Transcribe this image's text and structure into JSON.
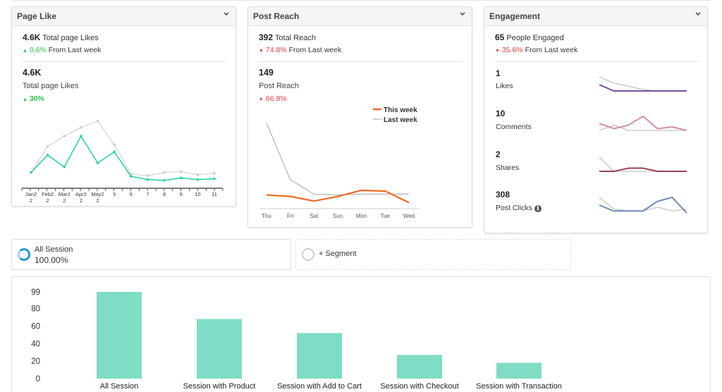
{
  "page_like": {
    "title": "Page Like",
    "summary_value": "4.6K",
    "summary_label": "Total page Likes",
    "delta_arrow": "▲",
    "delta_pct": "0.6%",
    "delta_suffix": "From Last week",
    "big_value": "4.6K",
    "big_label": "Total page Likes",
    "big_delta_arrow": "▲",
    "big_delta": "30%",
    "chart_data": {
      "type": "line",
      "categories": [
        "Jan2 2",
        "Feb2 2",
        "Mar2 2",
        "Apr2 2",
        "May2 2",
        "5",
        "6",
        "7",
        "8",
        "9",
        "10",
        "11"
      ],
      "tick_labels": [
        [
          "Jan2",
          "2"
        ],
        [
          "Feb2",
          "2"
        ],
        [
          "Mar2",
          "2"
        ],
        [
          "Apr2",
          "2"
        ],
        [
          "May2",
          "2"
        ],
        [
          "5"
        ],
        [
          "6"
        ],
        [
          "7"
        ],
        [
          "8"
        ],
        [
          "9"
        ],
        [
          "10"
        ],
        [
          "11"
        ]
      ],
      "series": [
        {
          "values": [
            20,
            42,
            27,
            66,
            32,
            46,
            15,
            11,
            10,
            13,
            11,
            12
          ],
          "color": "#2ed3a0"
        },
        {
          "values": [
            20,
            53,
            66,
            77,
            85,
            55,
            18,
            16,
            20,
            21,
            17,
            19
          ],
          "color": "#cccccc"
        }
      ],
      "ylim": [
        0,
        100
      ]
    }
  },
  "post_reach": {
    "title": "Post Reach",
    "summary_value": "392",
    "summary_label": "Total Reach",
    "delta_arrow": "▼",
    "delta_pct": "74.8%",
    "delta_suffix": "From Last week",
    "big_value": "149",
    "big_label": "Post Reach",
    "big_delta_arrow": "▼",
    "big_delta": "66.9%",
    "chart_data": {
      "type": "line",
      "categories": [
        "Thu",
        "Fri",
        "Sat",
        "Sun",
        "Mon",
        "Tue",
        "Wed"
      ],
      "legend": [
        "This week",
        "Last week"
      ],
      "series": [
        {
          "name": "This week",
          "values": [
            18,
            16,
            10,
            16,
            24,
            23,
            8
          ],
          "color": "#f26722"
        },
        {
          "name": "Last week",
          "values": [
            112,
            38,
            19,
            18,
            19,
            19,
            19
          ],
          "color": "#b5b5b5"
        }
      ],
      "ylim": [
        0,
        130
      ]
    }
  },
  "engagement": {
    "title": "Engagement",
    "summary_value": "65",
    "summary_label": "People Engaged",
    "delta_arrow": "▼",
    "delta_pct": "35.6%",
    "delta_suffix": "From Last week",
    "metrics": [
      {
        "value": "1",
        "label": "Likes",
        "info": "",
        "color": "#7b4f9c",
        "current": [
          5,
          1,
          1,
          1,
          1,
          1,
          1
        ],
        "previous": [
          10,
          6,
          4,
          2,
          1,
          1,
          1
        ]
      },
      {
        "value": "10",
        "label": "Comments",
        "info": "",
        "color": "#d48fa0",
        "current": [
          6,
          3,
          5,
          10,
          3,
          4,
          2
        ],
        "previous": [
          2,
          5,
          2,
          2,
          2,
          2,
          2
        ]
      },
      {
        "value": "2",
        "label": "Shares",
        "info": "",
        "color": "#9e3f58",
        "current": [
          1,
          1,
          3,
          3,
          1,
          1,
          1
        ],
        "previous": [
          10,
          1,
          1,
          1,
          1,
          1,
          1
        ]
      },
      {
        "value": "308",
        "label": "Post Clicks",
        "info": "ℹ",
        "color": "#6b8bb8",
        "current": [
          5,
          2,
          2,
          2,
          7,
          9,
          1
        ],
        "previous": [
          9,
          3,
          2,
          2,
          4,
          2,
          3
        ]
      }
    ]
  },
  "segments": {
    "all_label": "All Session",
    "all_value": "100.00%",
    "add_label": "+ Segment"
  },
  "funnel": {
    "chart_data": {
      "type": "bar",
      "categories": [
        "All Session",
        "Session with Product",
        "Session with Add to Cart",
        "Session with Checkout",
        "Session with Transaction"
      ],
      "values": [
        99,
        68,
        52,
        27,
        18
      ],
      "y_ticks": [
        "99",
        "80",
        "60",
        "40",
        "20",
        "0"
      ],
      "ylim": [
        0,
        99
      ],
      "color": "#7fdcc5"
    }
  }
}
